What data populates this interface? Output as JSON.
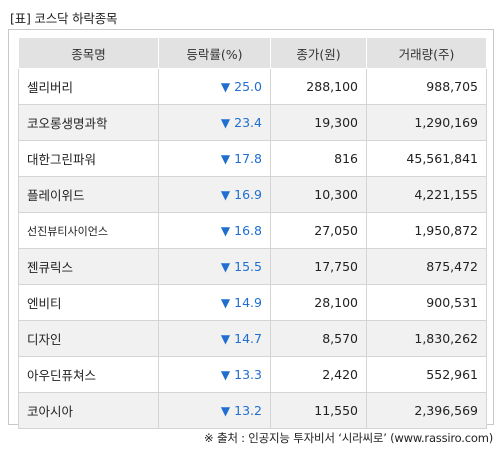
{
  "caption": "[표] 코스닥 하락종목",
  "table": {
    "headers": {
      "name": "종목명",
      "rate": "등락률(%)",
      "price": "종가(원)",
      "volume": "거래량(주)"
    },
    "rows": [
      {
        "name": "셀리버리",
        "rate": "25.0",
        "price": "288,100",
        "volume": "988,705"
      },
      {
        "name": "코오롱생명과학",
        "rate": "23.4",
        "price": "19,300",
        "volume": "1,290,169"
      },
      {
        "name": "대한그린파워",
        "rate": "17.8",
        "price": "816",
        "volume": "45,561,841"
      },
      {
        "name": "플레이위드",
        "rate": "16.9",
        "price": "10,300",
        "volume": "4,221,155"
      },
      {
        "name": "선진뷰티사이언스",
        "rate": "16.8",
        "price": "27,050",
        "volume": "1,950,872"
      },
      {
        "name": "젠큐릭스",
        "rate": "15.5",
        "price": "17,750",
        "volume": "875,472"
      },
      {
        "name": "엔비티",
        "rate": "14.9",
        "price": "28,100",
        "volume": "900,531"
      },
      {
        "name": "디자인",
        "rate": "14.7",
        "price": "8,570",
        "volume": "1,830,262"
      },
      {
        "name": "아우딘퓨쳐스",
        "rate": "13.3",
        "price": "2,420",
        "volume": "552,961"
      },
      {
        "name": "코아시아",
        "rate": "13.2",
        "price": "11,550",
        "volume": "2,396,569"
      }
    ],
    "down_symbol": "▼",
    "down_color": "#1f6fd1"
  },
  "source": "※ 출처 : 인공지능 투자비서 ‘시라씨로’ (www.rassiro.com)"
}
